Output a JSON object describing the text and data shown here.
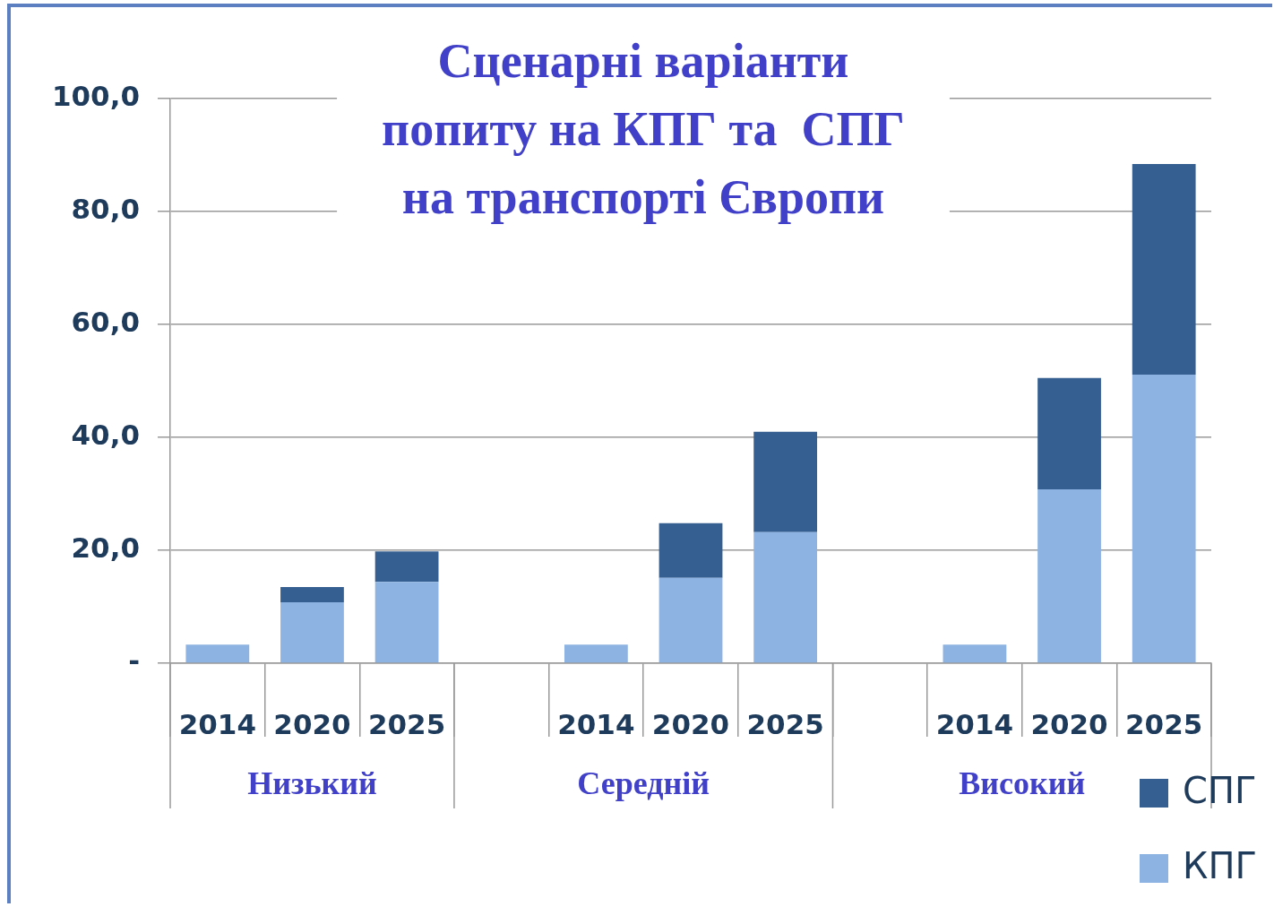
{
  "chart_data": {
    "type": "bar",
    "title": "Сценарні варіанти\nпопиту на КПГ та  СПГ\nна транспорті Європи",
    "categories": [
      "2014",
      "2020",
      "2025",
      null,
      "2014",
      "2020",
      "2025",
      null,
      "2014",
      "2020",
      "2025"
    ],
    "stacked": true,
    "series": [
      {
        "name": "КПГ",
        "color": "#8db3e2",
        "values": [
          3.3,
          10.8,
          14.4,
          null,
          3.3,
          15.1,
          23.2,
          null,
          3.3,
          30.8,
          51.1
        ]
      },
      {
        "name": "СПГ",
        "color": "#365f91",
        "values": [
          0,
          2.7,
          5.4,
          null,
          0,
          9.7,
          17.8,
          null,
          0,
          19.7,
          37.3
        ]
      }
    ],
    "annotations": [
      "Низький",
      "Середній",
      "Високий"
    ],
    "ylim": [
      0,
      100
    ],
    "yticks": [
      {
        "value": 0,
        "label": "-"
      },
      {
        "value": 20,
        "label": "20,0"
      },
      {
        "value": 40,
        "label": "40,0"
      },
      {
        "value": 60,
        "label": "60,0"
      },
      {
        "value": 80,
        "label": "80,0"
      },
      {
        "value": 100,
        "label": "100,0"
      }
    ],
    "grid": "y",
    "legend": "bottom right"
  }
}
